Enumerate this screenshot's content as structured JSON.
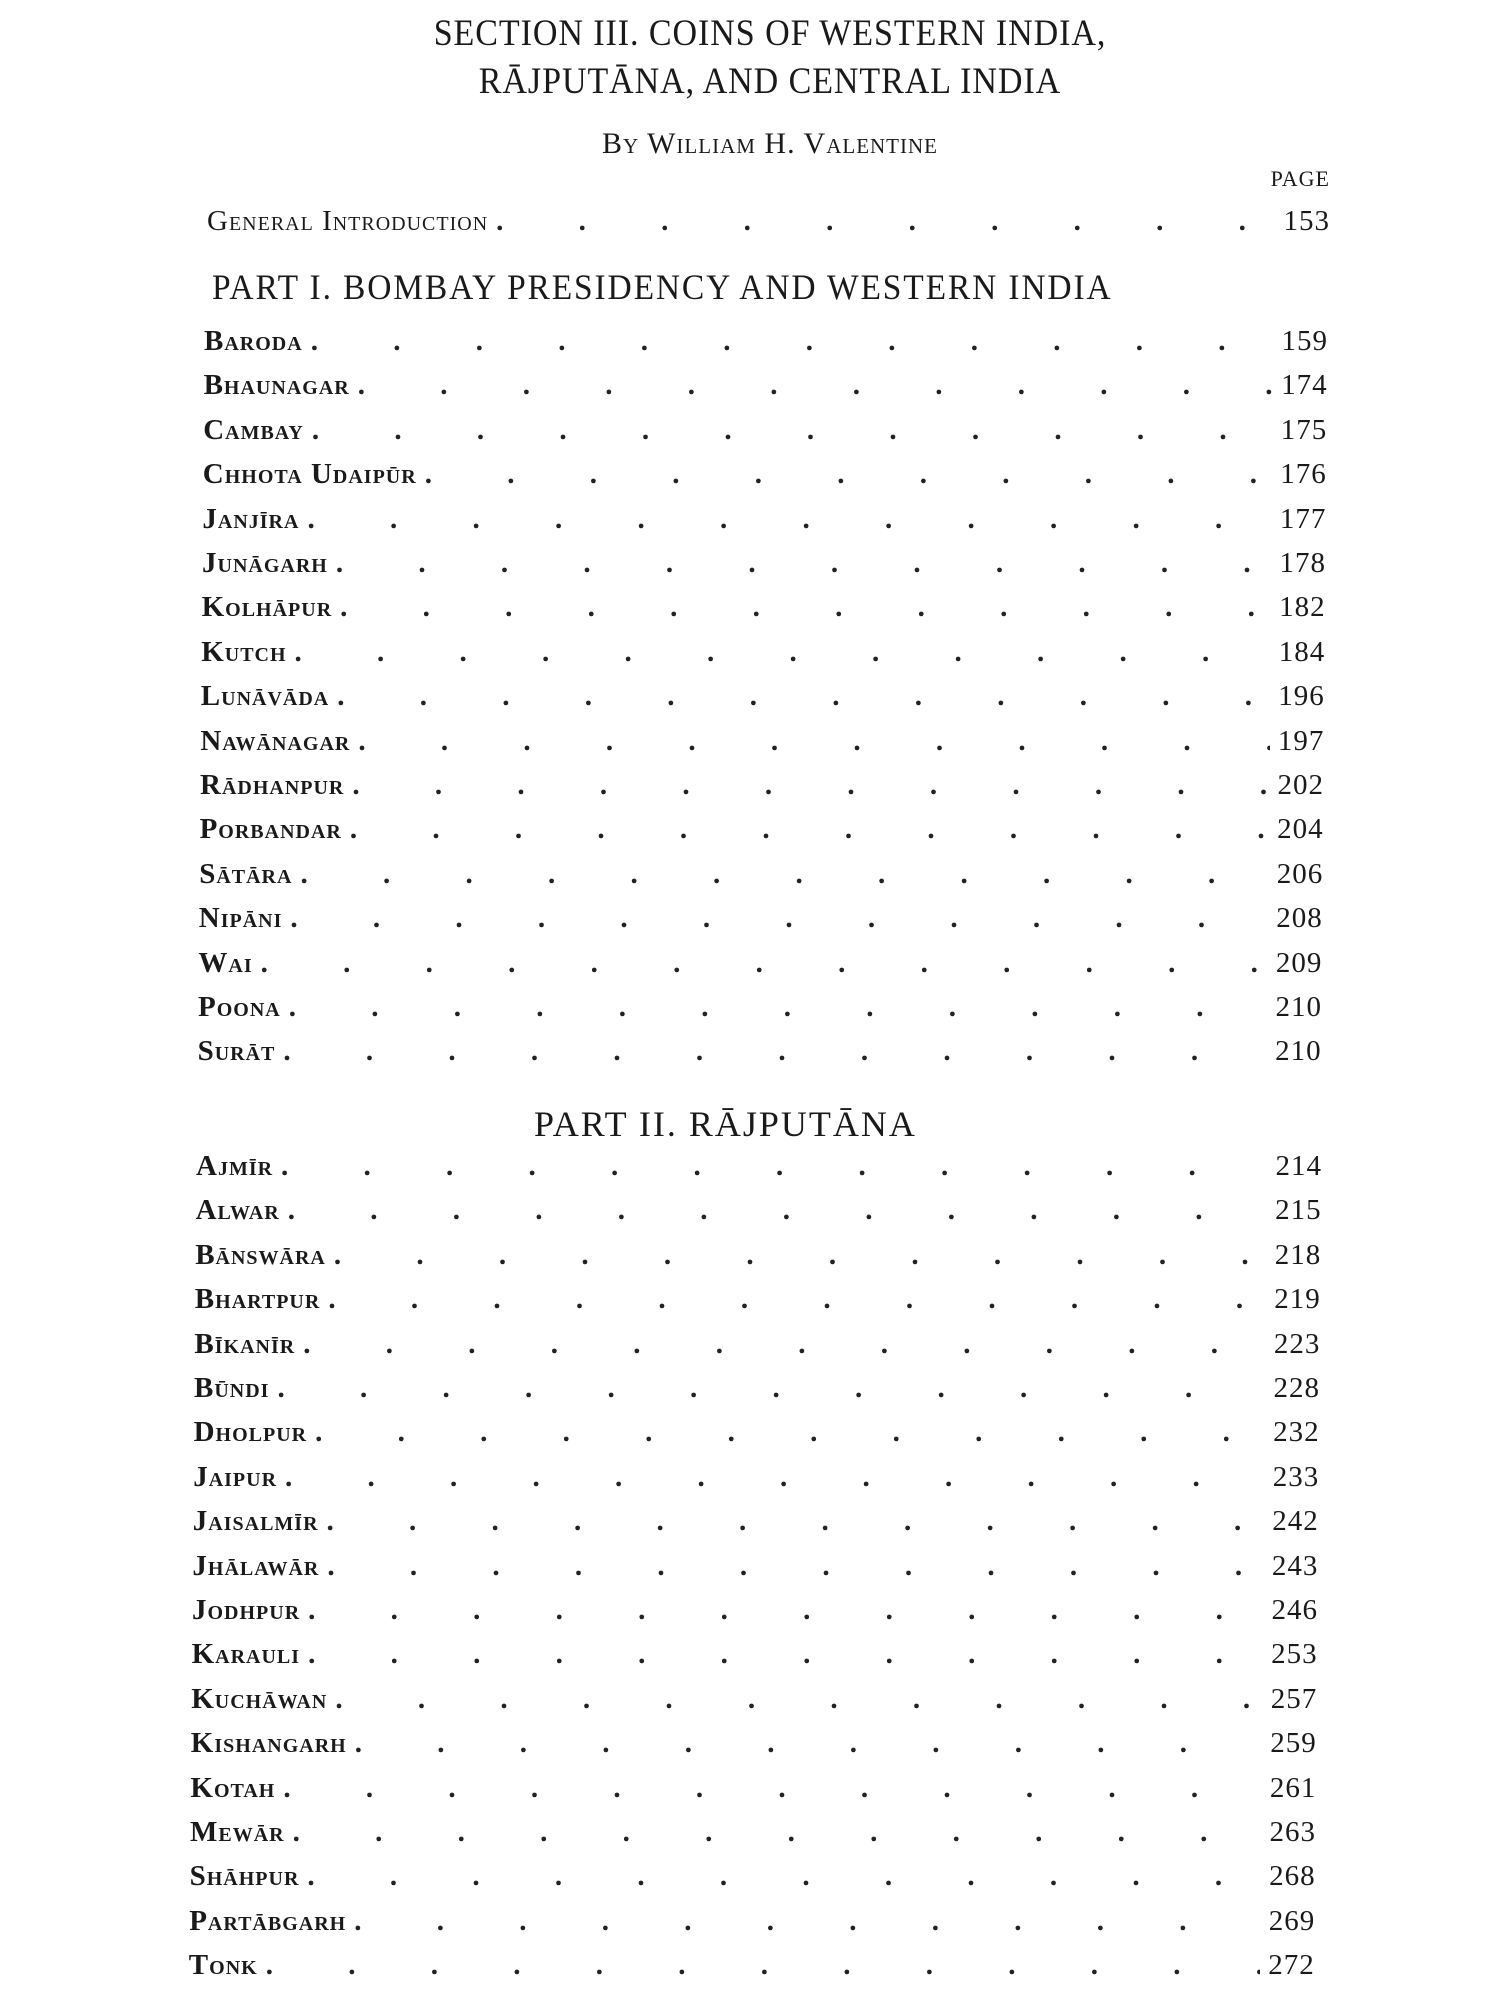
{
  "title_line1": "SECTION III. COINS OF WESTERN INDIA,",
  "title_line2": "RĀJPUTĀNA, AND CENTRAL INDIA",
  "byline": "By William H. Valentine",
  "page_header": "PAGE",
  "general_introduction": {
    "label": "General Introduction",
    "page": "153"
  },
  "part1": {
    "heading": "PART I.  BOMBAY PRESIDENCY AND WESTERN INDIA",
    "entries": [
      {
        "label": "Baroda",
        "page": "159"
      },
      {
        "label": "Bhaunagar",
        "page": "174"
      },
      {
        "label": "Cambay",
        "page": "175"
      },
      {
        "label": "Chhota Udaipūr",
        "page": "176"
      },
      {
        "label": "Janjīra",
        "page": "177"
      },
      {
        "label": "Junāgarh",
        "page": "178"
      },
      {
        "label": "Kolhāpur",
        "page": "182"
      },
      {
        "label": "Kutch",
        "page": "184"
      },
      {
        "label": "Lunāvāda",
        "page": "196"
      },
      {
        "label": "Nawānagar",
        "page": "197"
      },
      {
        "label": "Rādhanpur",
        "page": "202"
      },
      {
        "label": "Porbandar",
        "page": "204"
      },
      {
        "label": "Sātāra",
        "page": "206"
      },
      {
        "label": "Nipāni",
        "page": "208"
      },
      {
        "label": "Wai",
        "page": "209"
      },
      {
        "label": "Poona",
        "page": "210"
      },
      {
        "label": "Surāt",
        "page": "210"
      }
    ]
  },
  "part2": {
    "heading": "PART II.  RĀJPUTĀNA",
    "entries": [
      {
        "label": "Ajmīr",
        "page": "214"
      },
      {
        "label": "Alwar",
        "page": "215"
      },
      {
        "label": "Bānswāra",
        "page": "218"
      },
      {
        "label": "Bhartpur",
        "page": "219"
      },
      {
        "label": "Bīkanīr",
        "page": "223"
      },
      {
        "label": "Būndi",
        "page": "228"
      },
      {
        "label": "Dholpur",
        "page": "232"
      },
      {
        "label": "Jaipur",
        "page": "233"
      },
      {
        "label": "Jaisalmīr",
        "page": "242"
      },
      {
        "label": "Jhālawār",
        "page": "243"
      },
      {
        "label": "Jodhpur",
        "page": "246"
      },
      {
        "label": "Karauli",
        "page": "253"
      },
      {
        "label": "Kuchāwan",
        "page": "257"
      },
      {
        "label": "Kishangarh",
        "page": "259"
      },
      {
        "label": "Kotah",
        "page": "261"
      },
      {
        "label": "Mewār",
        "page": "263"
      },
      {
        "label": "Shāhpur",
        "page": "268"
      },
      {
        "label": "Partābgarh",
        "page": "269"
      },
      {
        "label": "Tonk",
        "page": "272"
      }
    ]
  }
}
